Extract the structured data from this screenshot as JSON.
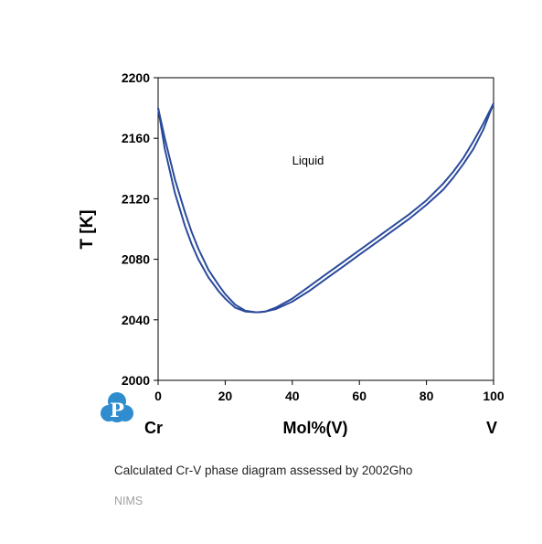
{
  "chart_data": {
    "type": "line",
    "xlabel": "Mol%(V)",
    "ylabel": "T [K]",
    "xlim": [
      0,
      100
    ],
    "ylim": [
      2000,
      2200
    ],
    "x_ticks": [
      0,
      20,
      40,
      60,
      80,
      100
    ],
    "y_ticks": [
      2000,
      2040,
      2080,
      2120,
      2160,
      2200
    ],
    "left_element": "Cr",
    "right_element": "V",
    "grid": false,
    "colors": {
      "line": "#2a4b9b",
      "axis": "#000000"
    },
    "annotations": [
      {
        "text": "Liquid",
        "x": 44,
        "y": 2146
      }
    ],
    "series": [
      {
        "x": [
          0,
          2,
          5,
          8,
          10,
          12,
          15,
          18,
          20,
          23,
          26,
          29,
          30,
          32,
          35,
          40,
          45,
          50,
          55,
          60,
          65,
          70,
          75,
          80,
          85,
          88,
          91,
          94,
          97,
          100
        ],
        "y": [
          2180,
          2160,
          2133,
          2111,
          2098,
          2087,
          2073,
          2063,
          2057,
          2050,
          2046,
          2045,
          2045,
          2045.5,
          2048,
          2054,
          2062,
          2070,
          2078,
          2086,
          2094,
          2102,
          2110,
          2119,
          2130,
          2138,
          2147,
          2158,
          2170,
          2183
        ]
      },
      {
        "x": [
          0,
          2,
          5,
          8,
          10,
          12,
          15,
          18,
          20,
          23,
          26,
          29,
          30,
          32,
          35,
          40,
          45,
          50,
          55,
          60,
          65,
          70,
          75,
          80,
          85,
          88,
          91,
          94,
          97,
          100
        ],
        "y": [
          2180,
          2153,
          2124,
          2102,
          2090,
          2080,
          2068,
          2059,
          2054,
          2048,
          2045.5,
          2045,
          2045,
          2045.5,
          2047,
          2052,
          2059,
          2067,
          2075,
          2083,
          2091,
          2099,
          2107,
          2116,
          2126,
          2134,
          2143,
          2153,
          2166,
          2183
        ]
      }
    ]
  },
  "caption": "Calculated Cr-V phase diagram assessed by 2002Gho",
  "credit": "NIMS",
  "logo": {
    "icon": "p-cluster-logo",
    "letter": "P",
    "color": "#2f8ccf"
  }
}
